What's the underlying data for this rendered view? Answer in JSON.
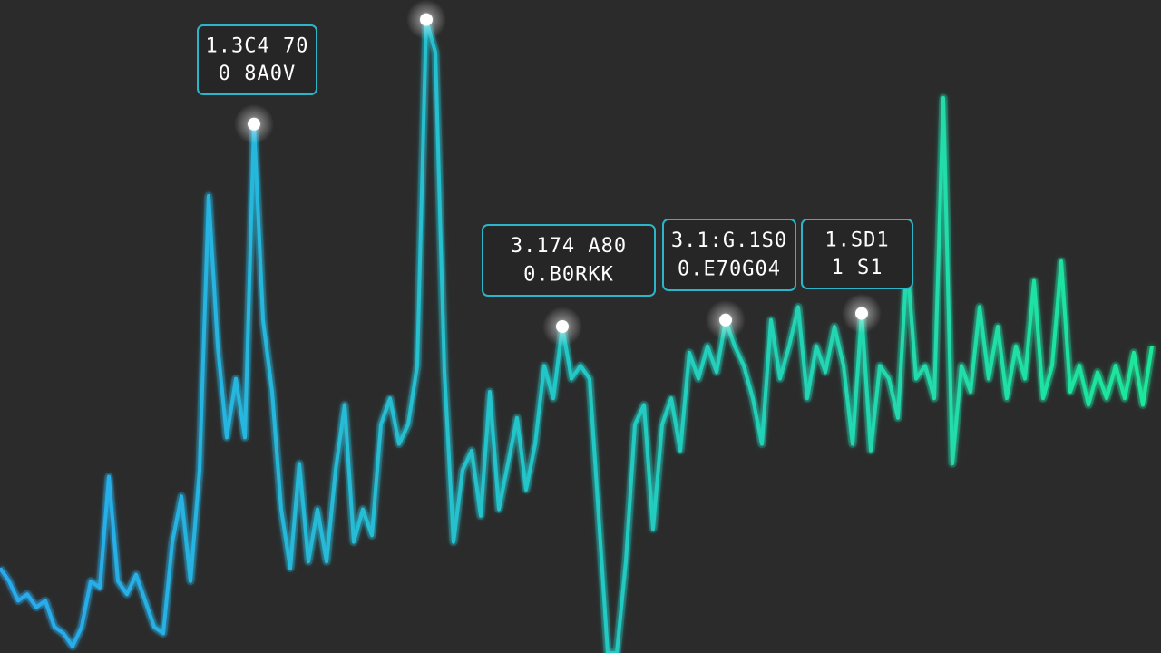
{
  "chart_data": {
    "type": "line",
    "values": [
      13,
      11,
      8,
      9,
      7,
      8,
      4,
      3,
      1,
      4,
      11,
      10,
      27,
      11,
      9,
      12,
      8,
      4,
      3,
      17,
      24,
      11,
      28,
      70,
      47,
      33,
      42,
      33,
      81,
      51,
      40,
      22,
      13,
      29,
      14,
      22,
      14,
      28,
      38,
      17,
      22,
      18,
      35,
      39,
      32,
      35,
      44,
      97,
      92,
      43,
      17,
      28,
      31,
      21,
      40,
      22,
      29,
      36,
      25,
      32,
      44,
      39,
      50,
      42,
      44,
      42,
      21,
      0,
      0,
      14,
      35,
      38,
      19,
      35,
      39,
      31,
      46,
      42,
      47,
      43,
      51,
      47,
      44,
      39,
      32,
      51,
      42,
      47,
      53,
      39,
      47,
      43,
      50,
      44,
      32,
      52,
      31,
      44,
      42,
      36,
      60,
      42,
      44,
      39,
      85,
      29,
      44,
      40,
      53,
      42,
      50,
      39,
      47,
      42,
      57,
      39,
      44,
      60,
      40,
      44,
      38,
      43,
      39,
      44,
      39,
      46,
      38,
      47
    ],
    "ylim": [
      0,
      100
    ],
    "colors": [
      "#29a9f0",
      "#1ee89a"
    ],
    "annotations": [
      {
        "lines": [
          "1.3C4 70",
          "0 8A0V"
        ]
      },
      {
        "lines": [
          "3.174 A80",
          "0.B0RKK"
        ]
      },
      {
        "lines": [
          "3.1:G.1S0",
          "0.E70G04"
        ]
      },
      {
        "lines": [
          "1.SD1",
          "1 S1"
        ]
      }
    ]
  }
}
